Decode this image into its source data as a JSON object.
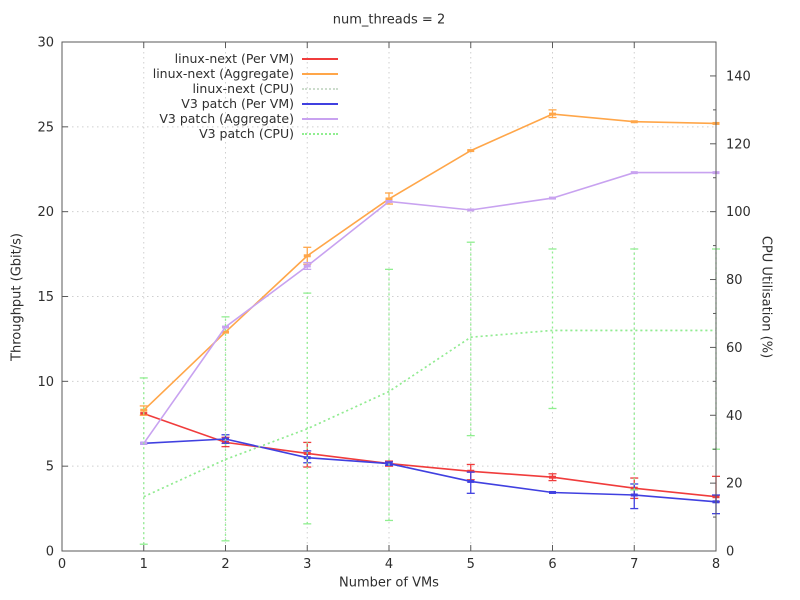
{
  "chart_data": {
    "type": "line",
    "title": "num_threads = 2",
    "xlabel": "Number of VMs",
    "ylabel_left": "Throughput (Gbit/s)",
    "ylabel_right": "CPU Utilisation (%)",
    "x_range": [
      0,
      8
    ],
    "x_ticks": [
      0,
      1,
      2,
      3,
      4,
      5,
      6,
      7,
      8
    ],
    "y_left_range": [
      0,
      30
    ],
    "y_left_ticks": [
      0,
      5,
      10,
      15,
      20,
      25,
      30
    ],
    "y_right_range": [
      0,
      150
    ],
    "y_right_ticks": [
      0,
      20,
      40,
      60,
      80,
      100,
      120,
      140
    ],
    "y_right_minor_ticks": [
      10,
      30,
      50,
      70,
      90,
      110,
      130
    ],
    "grid": {
      "style": "dotted",
      "color": "#cfcfcf",
      "x_lines": [
        1,
        2,
        3,
        4,
        5,
        6,
        7
      ],
      "y_lines": [
        5,
        10,
        15,
        20,
        25
      ]
    },
    "legend_position": "top-left-inside",
    "x": [
      1,
      2,
      3,
      4,
      5,
      6,
      7,
      8
    ],
    "series": [
      {
        "name": "linux-next (Per VM)",
        "axis": "left",
        "color": "#f03c3c",
        "style": "solid",
        "values": [
          8.1,
          6.4,
          5.75,
          5.15,
          4.7,
          4.35,
          3.7,
          3.2
        ],
        "err_lo": [
          null,
          6.15,
          4.95,
          5.0,
          4.2,
          4.15,
          3.1,
          2.9
        ],
        "err_hi": [
          null,
          6.7,
          6.4,
          5.3,
          5.1,
          4.55,
          4.3,
          4.4
        ]
      },
      {
        "name": "linux-next (Aggregate)",
        "axis": "left",
        "color": "#ffa649",
        "style": "solid",
        "values": [
          8.3,
          12.9,
          17.4,
          20.75,
          23.6,
          25.75,
          25.3,
          25.2
        ],
        "err_lo": [
          8.0,
          null,
          16.9,
          20.45,
          null,
          25.55,
          null,
          null
        ],
        "err_hi": [
          8.55,
          null,
          17.9,
          21.1,
          null,
          26.0,
          null,
          null
        ]
      },
      {
        "name": "linux-next (CPU)",
        "axis": "right",
        "color": "#ccdccc",
        "style": "dotted",
        "values": [
          16,
          27,
          36,
          47,
          63,
          65,
          65,
          65
        ],
        "err_lo": [
          null,
          null,
          null,
          null,
          null,
          null,
          null,
          null
        ],
        "err_hi": [
          null,
          null,
          null,
          null,
          null,
          null,
          null,
          null
        ]
      },
      {
        "name": "V3 patch (Per VM)",
        "axis": "left",
        "color": "#4040e0",
        "style": "solid",
        "values": [
          6.35,
          6.6,
          5.5,
          5.15,
          4.1,
          3.45,
          3.3,
          2.9
        ],
        "err_lo": [
          null,
          6.35,
          5.2,
          5.05,
          3.4,
          null,
          2.5,
          2.2
        ],
        "err_hi": [
          null,
          6.85,
          5.9,
          5.25,
          4.65,
          null,
          3.95,
          3.3
        ]
      },
      {
        "name": "V3 patch (Aggregate)",
        "axis": "left",
        "color": "#c8a2f0",
        "style": "solid",
        "values": [
          6.35,
          13.2,
          16.8,
          20.6,
          20.1,
          20.8,
          22.3,
          22.3
        ],
        "err_lo": [
          null,
          null,
          16.6,
          null,
          null,
          null,
          null,
          null
        ],
        "err_hi": [
          null,
          null,
          17.0,
          null,
          null,
          null,
          null,
          null
        ]
      },
      {
        "name": "V3 patch (CPU)",
        "axis": "right",
        "color": "#90ee90",
        "style": "dotted",
        "values": [
          16,
          27,
          36,
          47,
          63,
          65,
          65,
          65
        ],
        "err_lo": [
          2,
          3,
          8,
          9,
          34,
          42,
          18,
          30
        ],
        "err_hi": [
          51,
          69,
          76,
          83,
          91,
          89,
          89,
          89
        ]
      }
    ],
    "colors": {
      "axis_border": "#5a5a5a",
      "tick_text": "#2e2e2e",
      "grid": "#cfcfcf"
    }
  }
}
